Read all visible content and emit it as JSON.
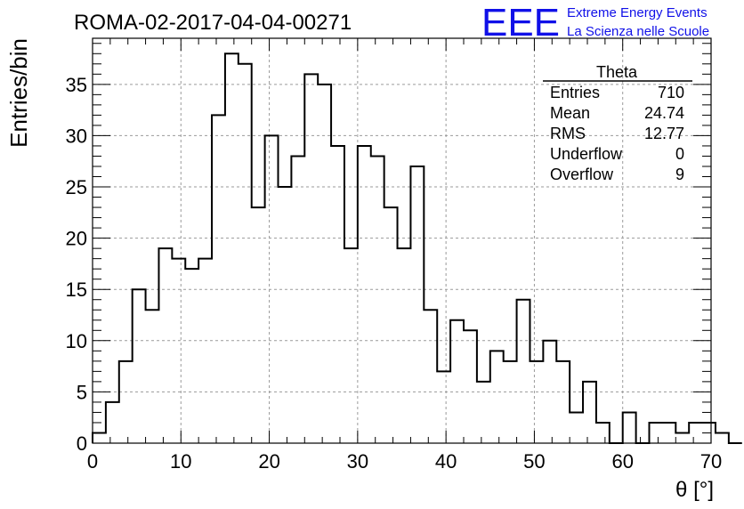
{
  "run_title": "ROMA-02-2017-04-04-00271",
  "logo": {
    "text": "EEE",
    "line1": "Extreme Energy Events",
    "line2": "La Scienza nelle Scuole",
    "color": "#1010e8"
  },
  "stats": {
    "title": "Theta",
    "rows": [
      {
        "label": "Entries",
        "value": "710"
      },
      {
        "label": "Mean",
        "value": "24.74"
      },
      {
        "label": "RMS",
        "value": "12.77"
      },
      {
        "label": "Underflow",
        "value": "0"
      },
      {
        "label": "Overflow",
        "value": "9"
      }
    ]
  },
  "chart_data": {
    "type": "bar",
    "style": "step-histogram",
    "xlabel": "θ [°]",
    "ylabel": "Entries/bin",
    "xlim": [
      0,
      70
    ],
    "ylim": [
      0,
      39.5
    ],
    "bin_width": 1.5,
    "bin_start": 0,
    "values": [
      1,
      4,
      8,
      15,
      13,
      19,
      18,
      17,
      18,
      32,
      38,
      37,
      23,
      30,
      25,
      28,
      36,
      35,
      29,
      19,
      29,
      28,
      23,
      19,
      27,
      13,
      7,
      12,
      11,
      6,
      9,
      8,
      14,
      8,
      10,
      8,
      3,
      6,
      2,
      0,
      3,
      0,
      2,
      2,
      1,
      2,
      2,
      1,
      0
    ],
    "x_ticks": [
      0,
      10,
      20,
      30,
      40,
      50,
      60,
      70
    ],
    "y_ticks": [
      0,
      5,
      10,
      15,
      20,
      25,
      30,
      35
    ],
    "grid": true,
    "line_color": "#000000",
    "grid_color": "#9a9a9a"
  }
}
